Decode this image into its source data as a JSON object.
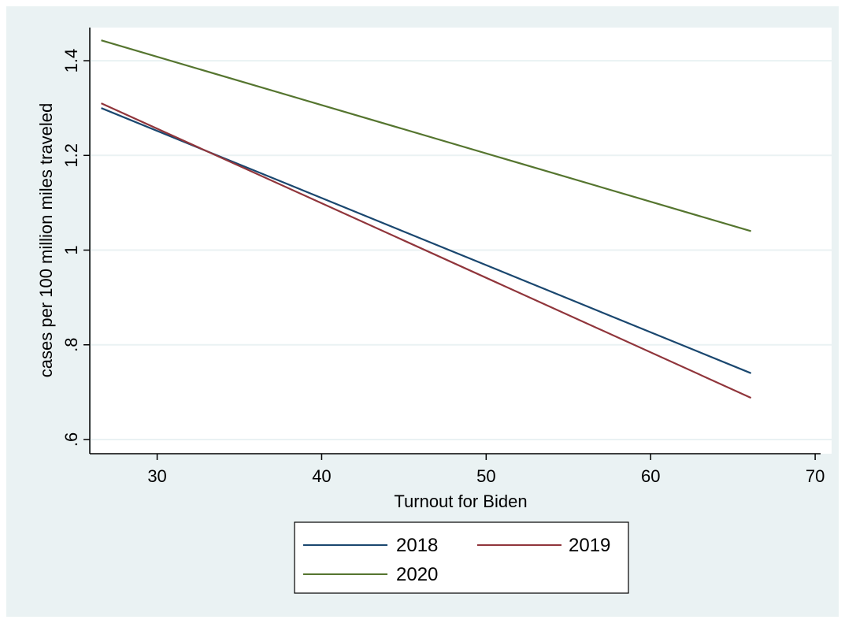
{
  "chart_data": {
    "type": "line",
    "title": "",
    "xlabel": "Turnout for Biden",
    "ylabel": "cases per 100 million miles traveled",
    "xlim": [
      26,
      71
    ],
    "ylim": [
      0.57,
      1.47
    ],
    "xticks": [
      30,
      40,
      50,
      60,
      70
    ],
    "xtick_labels": [
      "30",
      "40",
      "50",
      "60",
      "70"
    ],
    "yticks": [
      0.6,
      0.8,
      1.0,
      1.2,
      1.4
    ],
    "ytick_labels": [
      ".6",
      ".8",
      "1",
      "1.2",
      "1.4"
    ],
    "grid": true,
    "legend_position": "bottom",
    "series": [
      {
        "name": "2018",
        "x": [
          26.6,
          66.1
        ],
        "y": [
          1.3,
          0.74
        ],
        "color": "#1a476f"
      },
      {
        "name": "2019",
        "x": [
          26.6,
          66.1
        ],
        "y": [
          1.31,
          0.688
        ],
        "color": "#90353b"
      },
      {
        "name": "2020",
        "x": [
          26.6,
          66.1
        ],
        "y": [
          1.443,
          1.04
        ],
        "color": "#55752f"
      }
    ]
  },
  "colors": {
    "background": "#eaf2f3",
    "plot_background": "#ffffff",
    "gridline": "#eaf2f3"
  }
}
